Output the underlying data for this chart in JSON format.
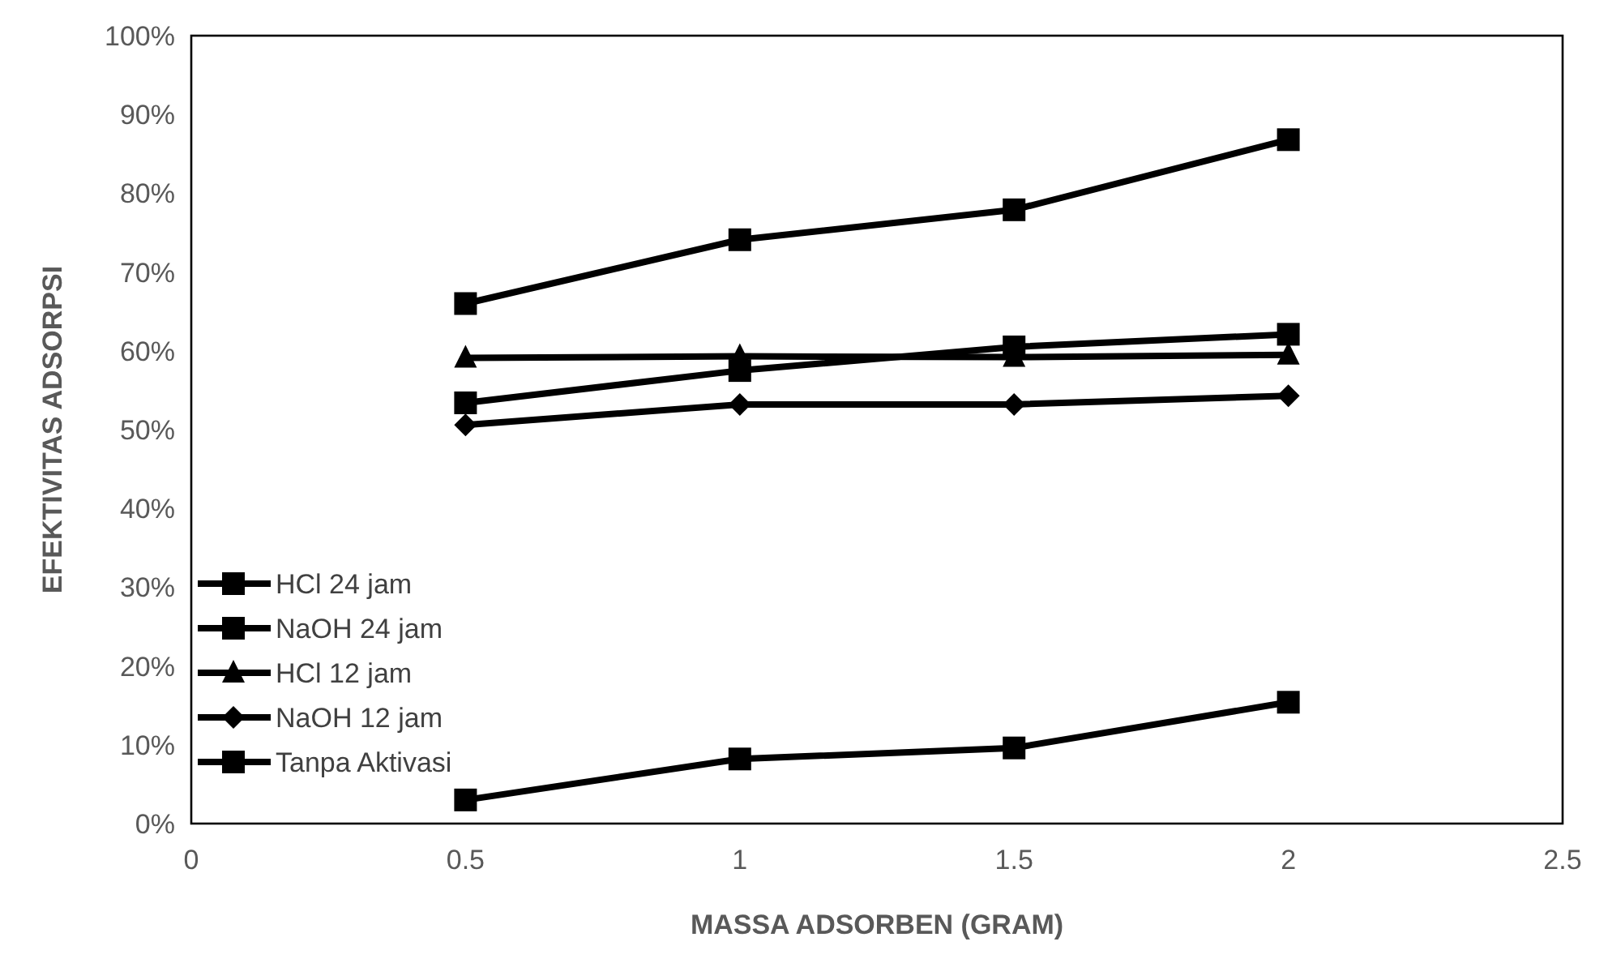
{
  "chart_data": {
    "type": "line",
    "xlabel": "MASSA ADSORBEN (GRAM)",
    "ylabel": "EFEKTIVITAS ADSORPSI",
    "x": [
      0.5,
      1,
      1.5,
      2
    ],
    "series": [
      {
        "name": "HCl 24 jam",
        "color": "#000000",
        "marker": "square",
        "values": [
          66,
          74.1,
          77.9,
          86.8
        ]
      },
      {
        "name": "NaOH 24 jam",
        "color": "#000000",
        "marker": "square",
        "values": [
          53.4,
          57.5,
          60.5,
          62.1
        ]
      },
      {
        "name": "HCl 12 jam",
        "color": "#000000",
        "marker": "triangle",
        "values": [
          59.1,
          59.3,
          59.2,
          59.5
        ]
      },
      {
        "name": "NaOH 12 jam",
        "color": "#000000",
        "marker": "diamond",
        "values": [
          50.6,
          53.2,
          53.2,
          54.3
        ]
      },
      {
        "name": "Tanpa Aktivasi",
        "color": "#000000",
        "marker": "square",
        "values": [
          3,
          8.2,
          9.6,
          15.4
        ]
      }
    ],
    "xlim": [
      0,
      2.5
    ],
    "xticks": [
      0,
      0.5,
      1,
      1.5,
      2,
      2.5
    ],
    "ylim": [
      0,
      100
    ],
    "yticks": [
      {
        "value": 0,
        "label": "0%"
      },
      {
        "value": 10,
        "label": "10%"
      },
      {
        "value": 20,
        "label": "20%"
      },
      {
        "value": 30,
        "label": "30%"
      },
      {
        "value": 40,
        "label": "40%"
      },
      {
        "value": 50,
        "label": "50%"
      },
      {
        "value": 60,
        "label": "60%"
      },
      {
        "value": 70,
        "label": "70%"
      },
      {
        "value": 80,
        "label": "80%"
      },
      {
        "value": 90,
        "label": "90%"
      },
      {
        "value": 100,
        "label": "100%"
      }
    ],
    "grid": false,
    "legend": "bottom left",
    "line_style": "solid"
  }
}
